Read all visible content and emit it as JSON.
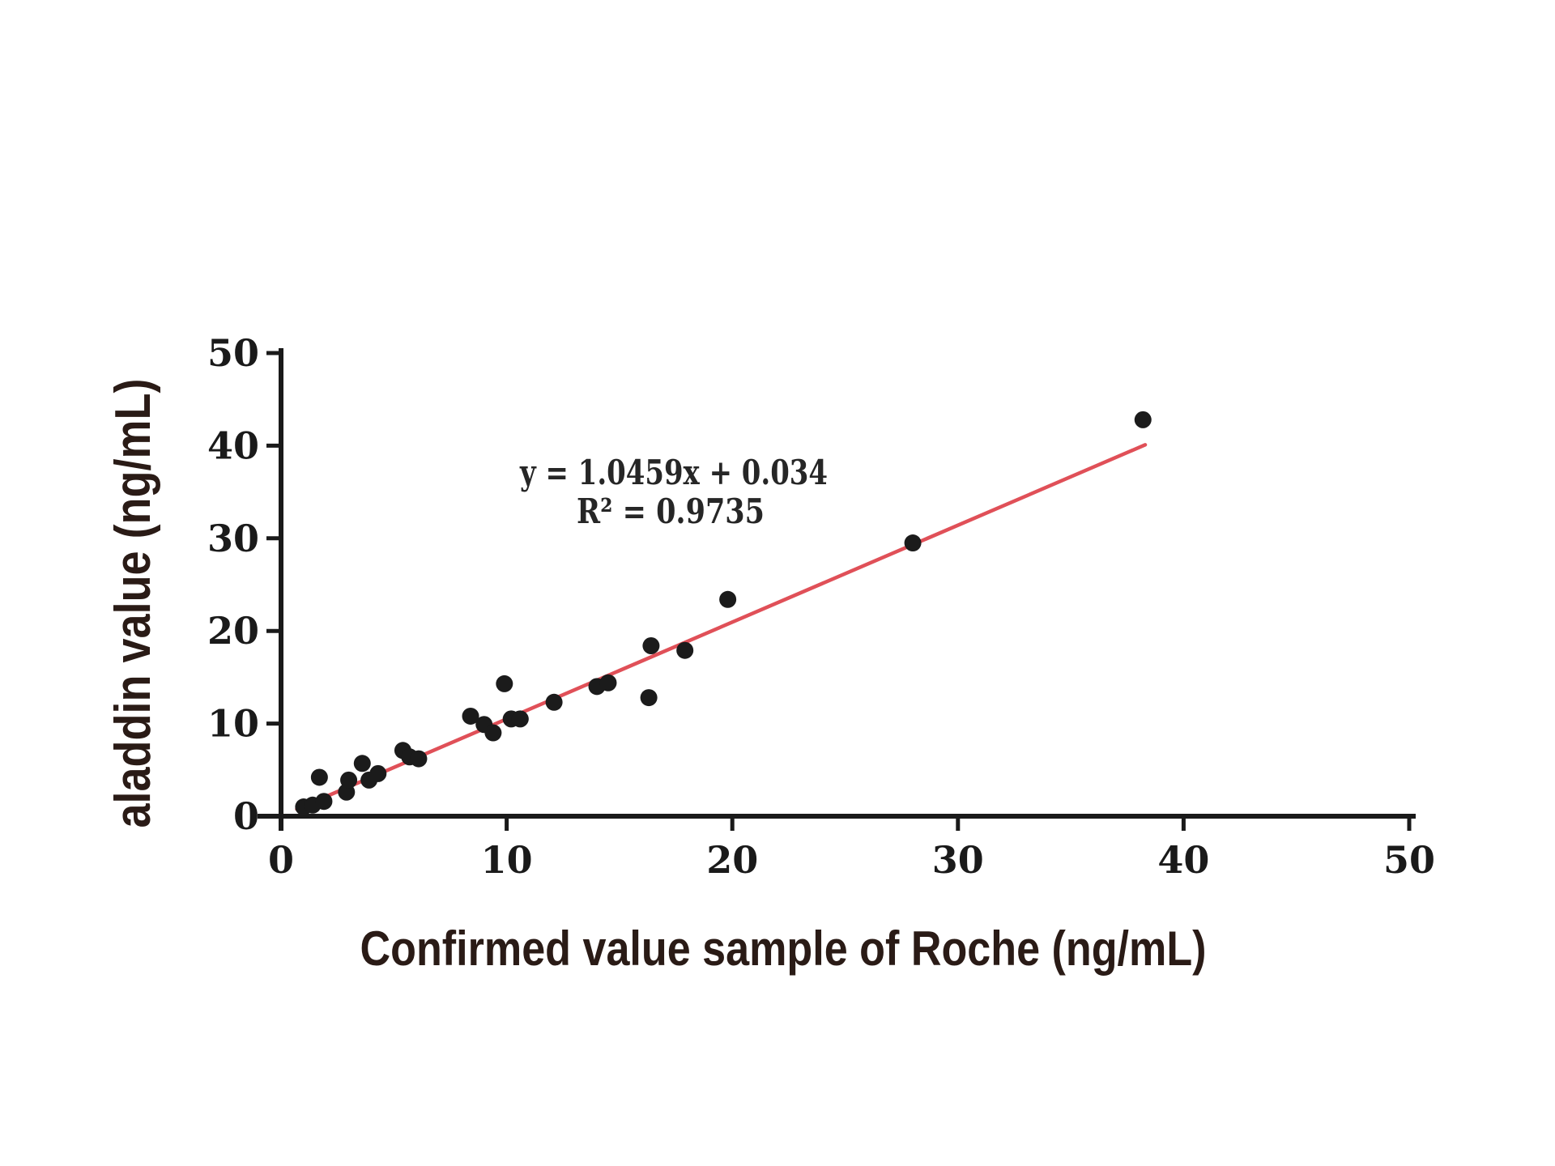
{
  "figure": {
    "background": "#ffffff"
  },
  "chart_data": {
    "type": "scatter",
    "title": "",
    "xlabel": "Confirmed value sample of Roche (ng/mL)",
    "ylabel": "aladdin value (ng/mL)",
    "xlim": [
      0,
      50
    ],
    "ylim": [
      0,
      50
    ],
    "x_ticks": [
      0,
      10,
      20,
      30,
      40,
      50
    ],
    "y_ticks": [
      0,
      10,
      20,
      30,
      40,
      50
    ],
    "grid": false,
    "legend": "none",
    "points": [
      [
        1.0,
        1.0
      ],
      [
        1.4,
        1.2
      ],
      [
        1.9,
        1.6
      ],
      [
        1.7,
        4.2
      ],
      [
        2.9,
        2.6
      ],
      [
        3.0,
        3.9
      ],
      [
        3.6,
        5.7
      ],
      [
        3.9,
        3.9
      ],
      [
        4.3,
        4.6
      ],
      [
        5.4,
        7.1
      ],
      [
        5.7,
        6.4
      ],
      [
        6.1,
        6.2
      ],
      [
        8.4,
        10.8
      ],
      [
        9.0,
        9.9
      ],
      [
        9.4,
        9.0
      ],
      [
        9.9,
        14.3
      ],
      [
        10.2,
        10.5
      ],
      [
        10.6,
        10.5
      ],
      [
        12.1,
        12.3
      ],
      [
        14.0,
        14.0
      ],
      [
        14.5,
        14.4
      ],
      [
        16.3,
        12.8
      ],
      [
        16.4,
        18.4
      ],
      [
        17.9,
        17.9
      ],
      [
        19.8,
        23.4
      ],
      [
        28.0,
        29.5
      ],
      [
        38.2,
        42.8
      ]
    ],
    "trendline": {
      "slope": 1.0459,
      "intercept": 0.034,
      "x_start": 0.7,
      "x_end": 38.3
    },
    "annotation": {
      "equation": "y = 1.0459x + 0.034",
      "r_squared": "R² = 0.9735"
    },
    "colors": {
      "point": "#1b1b1b",
      "axis": "#1a1a1a",
      "tick_label": "#1a1a1a",
      "trendline": "#e05058",
      "axis_title": "#2a1b16",
      "equation_text": "#262626"
    }
  }
}
